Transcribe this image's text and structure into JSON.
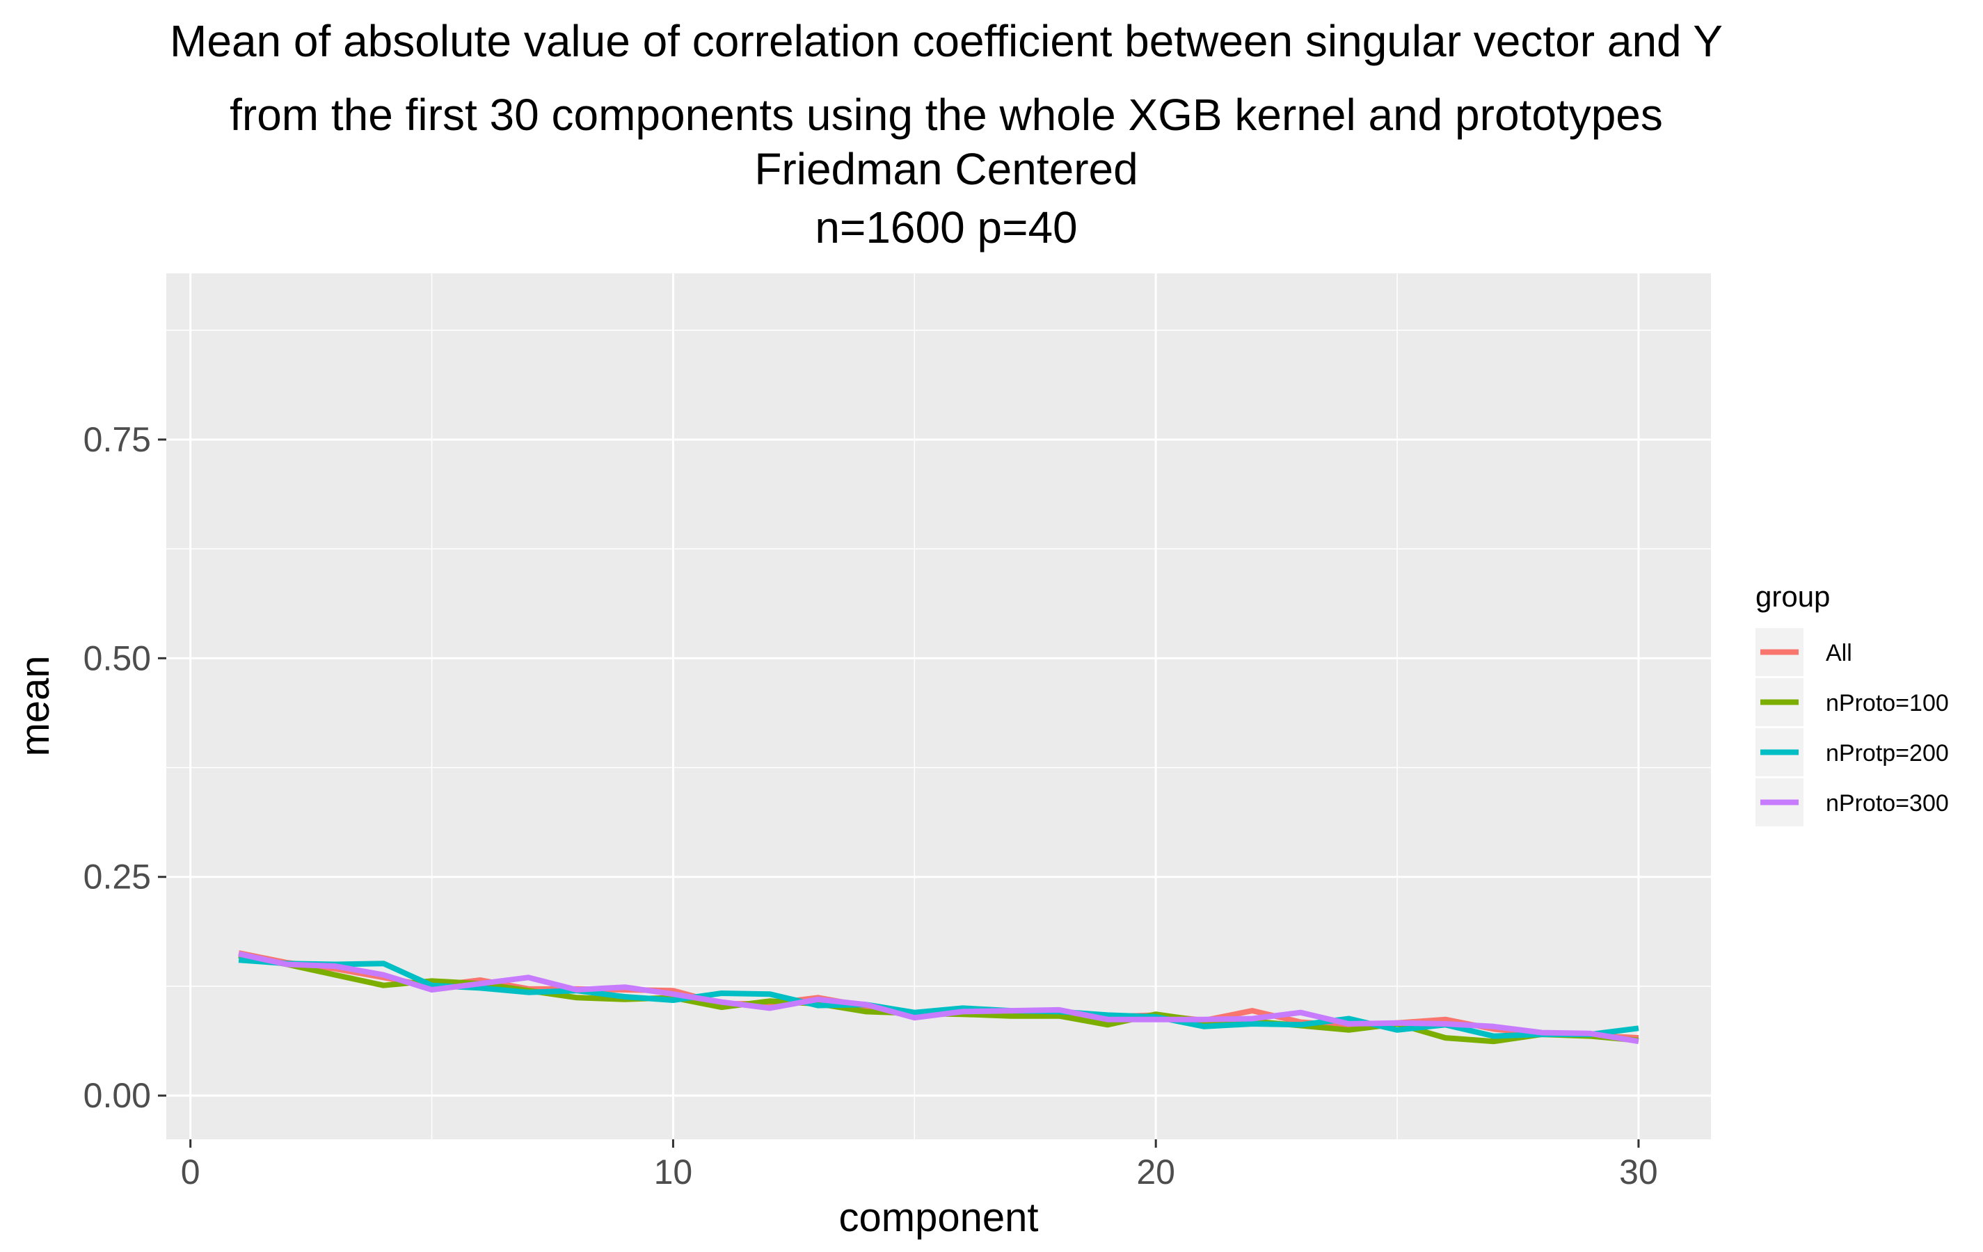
{
  "chart_data": {
    "type": "line",
    "title_lines": [
      "Mean of absolute value of correlation coefficient between singular vector and Y",
      "from the first 30 components using the whole XGB kernel and prototypes",
      "Friedman Centered",
      "n=1600 p=40"
    ],
    "xlabel": "component",
    "ylabel": "mean",
    "xlim": [
      -0.5,
      31.5
    ],
    "ylim": [
      -0.05,
      0.94
    ],
    "x_ticks": [
      0,
      10,
      20,
      30
    ],
    "x_tick_labels": [
      "0",
      "10",
      "20",
      "30"
    ],
    "y_ticks": [
      0.0,
      0.25,
      0.5,
      0.75
    ],
    "y_tick_labels": [
      "0.00",
      "0.25",
      "0.50",
      "0.75"
    ],
    "grid": true,
    "legend": {
      "title": "group",
      "position": "right"
    },
    "x": [
      1,
      2,
      3,
      4,
      5,
      6,
      7,
      8,
      9,
      10,
      11,
      12,
      13,
      14,
      15,
      16,
      17,
      18,
      19,
      20,
      21,
      22,
      23,
      24,
      25,
      26,
      27,
      28,
      29,
      30
    ],
    "series": [
      {
        "name": "All",
        "color": "#F8766D",
        "values": [
          0.163,
          0.152,
          0.145,
          0.135,
          0.125,
          0.132,
          0.122,
          0.122,
          0.121,
          0.12,
          0.105,
          0.105,
          0.112,
          0.102,
          0.092,
          0.095,
          0.096,
          0.095,
          0.09,
          0.092,
          0.086,
          0.097,
          0.084,
          0.08,
          0.083,
          0.087,
          0.076,
          0.071,
          0.069,
          0.066
        ]
      },
      {
        "name": "nProto=100",
        "color": "#7CAE00",
        "values": [
          0.16,
          0.15,
          0.138,
          0.126,
          0.131,
          0.128,
          0.12,
          0.112,
          0.11,
          0.112,
          0.101,
          0.108,
          0.105,
          0.096,
          0.094,
          0.093,
          0.091,
          0.091,
          0.081,
          0.093,
          0.085,
          0.085,
          0.08,
          0.075,
          0.082,
          0.066,
          0.062,
          0.07,
          0.068,
          0.063
        ]
      },
      {
        "name": "nProtp=200",
        "color": "#00BFC4",
        "values": [
          0.155,
          0.151,
          0.15,
          0.151,
          0.126,
          0.123,
          0.118,
          0.12,
          0.113,
          0.109,
          0.117,
          0.116,
          0.103,
          0.104,
          0.095,
          0.1,
          0.097,
          0.096,
          0.092,
          0.09,
          0.079,
          0.082,
          0.081,
          0.088,
          0.075,
          0.081,
          0.068,
          0.07,
          0.07,
          0.077
        ]
      },
      {
        "name": "nProto=300",
        "color": "#C77CFF",
        "values": [
          0.162,
          0.15,
          0.148,
          0.138,
          0.121,
          0.128,
          0.135,
          0.121,
          0.124,
          0.116,
          0.107,
          0.1,
          0.11,
          0.104,
          0.089,
          0.096,
          0.097,
          0.098,
          0.087,
          0.087,
          0.087,
          0.088,
          0.095,
          0.082,
          0.083,
          0.082,
          0.079,
          0.072,
          0.071,
          0.062
        ]
      }
    ]
  }
}
